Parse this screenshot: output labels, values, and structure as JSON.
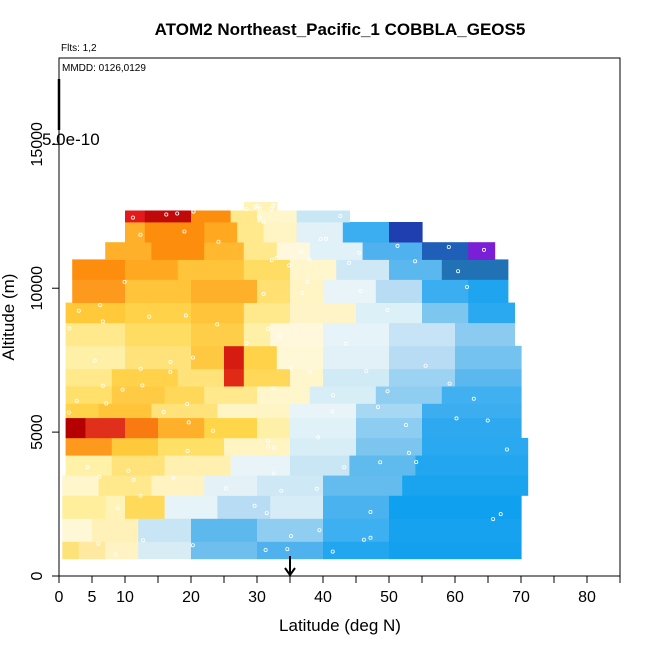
{
  "chart_data": {
    "type": "heatmap",
    "title": "ATOM2 Northeast_Pacific_1 COBBLA_GEOS5",
    "flights_label": "Flts: 1,2",
    "dates_label": "MMDD: 0126,0129",
    "scale_label": "5.0e-10",
    "xlabel": "Latitude (deg N)",
    "ylabel": "Altitude (m)",
    "xlim": [
      0,
      85
    ],
    "ylim": [
      0,
      18000
    ],
    "x_ticks": [
      0,
      5,
      10,
      20,
      30,
      40,
      50,
      60,
      70,
      80
    ],
    "x_tick_labels": [
      "0",
      "5",
      "10",
      "20",
      "30",
      "40",
      "50",
      "60",
      "70",
      "80"
    ],
    "y_ticks": [
      0,
      5000,
      10000,
      15000
    ],
    "y_tick_labels": [
      "0",
      "5000",
      "10000",
      "15000"
    ],
    "marker_latitude": 35,
    "colors": {
      "dark_red": "#b40000",
      "red": "#e31a1c",
      "orange": "#fd8d0c",
      "yellow": "#ffd92f",
      "pale_yellow": "#ffffbf",
      "pale_blue": "#e0f3f8",
      "light_blue": "#9ecae1",
      "sky_blue": "#1fa4ef",
      "blue": "#2171b5",
      "dark_blue": "#08088f",
      "purple": "#7a1fd6"
    },
    "rows": [
      {
        "y0": 600,
        "y1": 1200,
        "lat_start": 0.5,
        "lat_end": 70,
        "cells": [
          [
            0.5,
            3,
            "#fde27a"
          ],
          [
            3,
            7,
            "#ffe9a0"
          ],
          [
            7,
            12,
            "#fff3c4"
          ],
          [
            12,
            20,
            "#d8ecf6"
          ],
          [
            20,
            30,
            "#6fbfee"
          ],
          [
            30,
            40,
            "#4fb2ee"
          ],
          [
            40,
            50,
            "#22a6f0"
          ],
          [
            50,
            70,
            "#12a0ef"
          ]
        ]
      },
      {
        "y0": 1200,
        "y1": 2000,
        "lat_start": 0.5,
        "lat_end": 70,
        "cells": [
          [
            0.5,
            5,
            "#fff8d6"
          ],
          [
            5,
            12,
            "#fff1b8"
          ],
          [
            12,
            20,
            "#c7e5f5"
          ],
          [
            20,
            30,
            "#5db8ee"
          ],
          [
            30,
            40,
            "#8fcdf1"
          ],
          [
            40,
            50,
            "#3cb0f0"
          ],
          [
            50,
            70,
            "#16a2ef"
          ]
        ]
      },
      {
        "y0": 2000,
        "y1": 2800,
        "lat_start": 0.5,
        "lat_end": 70,
        "cells": [
          [
            0.5,
            7,
            "#ffef9c"
          ],
          [
            7,
            10,
            "#fff3b8"
          ],
          [
            10,
            16,
            "#ffd95a"
          ],
          [
            16,
            24,
            "#e6f3f8"
          ],
          [
            24,
            32,
            "#b8dcf3"
          ],
          [
            32,
            40,
            "#d6ecf6"
          ],
          [
            40,
            50,
            "#4ab3ef"
          ],
          [
            50,
            70,
            "#0fa0ef"
          ]
        ]
      },
      {
        "y0": 2800,
        "y1": 3500,
        "lat_start": 0.5,
        "lat_end": 71,
        "cells": [
          [
            0.5,
            6,
            "#fff6cc"
          ],
          [
            6,
            14,
            "#ffe98c"
          ],
          [
            14,
            22,
            "#fff3c2"
          ],
          [
            22,
            30,
            "#e4f2f8"
          ],
          [
            30,
            40,
            "#cfe8f6"
          ],
          [
            40,
            52,
            "#64bcee"
          ],
          [
            52,
            71,
            "#1aa3ef"
          ]
        ]
      },
      {
        "y0": 3500,
        "y1": 4200,
        "lat_start": 1,
        "lat_end": 71,
        "cells": [
          [
            1,
            8,
            "#fff1a8"
          ],
          [
            8,
            16,
            "#ffe27a"
          ],
          [
            16,
            26,
            "#fff0b0"
          ],
          [
            26,
            35,
            "#e8f4f7"
          ],
          [
            35,
            44,
            "#c9e6f5"
          ],
          [
            44,
            54,
            "#5fbaee"
          ],
          [
            54,
            71,
            "#22a6f0"
          ]
        ]
      },
      {
        "y0": 4200,
        "y1": 4800,
        "lat_start": 1,
        "lat_end": 71,
        "cells": [
          [
            1,
            8,
            "#fd9a1e"
          ],
          [
            8,
            15,
            "#ffc93c"
          ],
          [
            15,
            25,
            "#ffe066"
          ],
          [
            25,
            35,
            "#fff4c2"
          ],
          [
            35,
            45,
            "#d8eef7"
          ],
          [
            45,
            55,
            "#7cc5ef"
          ],
          [
            55,
            71,
            "#2aa9f0"
          ]
        ]
      },
      {
        "y0": 4800,
        "y1": 5500,
        "lat_start": 1,
        "lat_end": 70,
        "cells": [
          [
            1,
            4,
            "#b40000"
          ],
          [
            4,
            10,
            "#e0301c"
          ],
          [
            10,
            15,
            "#f87a10"
          ],
          [
            15,
            22,
            "#ffb02a"
          ],
          [
            22,
            30,
            "#ffd64a"
          ],
          [
            30,
            35,
            "#fff0a8"
          ],
          [
            35,
            45,
            "#e0f1f8"
          ],
          [
            45,
            55,
            "#8dcdf1"
          ],
          [
            55,
            70,
            "#2ea9f0"
          ]
        ]
      },
      {
        "y0": 5500,
        "y1": 6000,
        "lat_start": 1,
        "lat_end": 70,
        "cells": [
          [
            1,
            6,
            "#ffd24a"
          ],
          [
            6,
            14,
            "#ffc43a"
          ],
          [
            14,
            24,
            "#ffe27a"
          ],
          [
            24,
            35,
            "#fff4c4"
          ],
          [
            35,
            45,
            "#e8f4f8"
          ],
          [
            45,
            55,
            "#a6d7f3"
          ],
          [
            55,
            70,
            "#3caef0"
          ]
        ]
      },
      {
        "y0": 6000,
        "y1": 6600,
        "lat_start": 1,
        "lat_end": 70,
        "cells": [
          [
            1,
            8,
            "#ffe06a"
          ],
          [
            8,
            16,
            "#ffca44"
          ],
          [
            16,
            22,
            "#ffd85a"
          ],
          [
            22,
            30,
            "#ffe98c"
          ],
          [
            30,
            38,
            "#fff6cc"
          ],
          [
            38,
            48,
            "#d8eef7"
          ],
          [
            48,
            58,
            "#8fcdf1"
          ],
          [
            58,
            70,
            "#41b0f0"
          ]
        ]
      },
      {
        "y0": 6600,
        "y1": 7200,
        "lat_start": 1,
        "lat_end": 70,
        "cells": [
          [
            1,
            8,
            "#ffe98a"
          ],
          [
            8,
            18,
            "#ffd24a"
          ],
          [
            18,
            25,
            "#ffe27a"
          ],
          [
            25,
            28,
            "#e02a16"
          ],
          [
            28,
            35,
            "#ffd85a"
          ],
          [
            35,
            40,
            "#fff6cc"
          ],
          [
            40,
            50,
            "#d0eaf6"
          ],
          [
            50,
            60,
            "#9dd3f2"
          ],
          [
            60,
            70,
            "#5ab8ef"
          ]
        ]
      },
      {
        "y0": 7200,
        "y1": 8000,
        "lat_start": 1,
        "lat_end": 70,
        "cells": [
          [
            1,
            10,
            "#fff0a8"
          ],
          [
            10,
            20,
            "#ffe27a"
          ],
          [
            20,
            25,
            "#ffc840"
          ],
          [
            25,
            28,
            "#d61c12"
          ],
          [
            28,
            33,
            "#ffd24a"
          ],
          [
            33,
            40,
            "#fff8d6"
          ],
          [
            40,
            50,
            "#e2f1f8"
          ],
          [
            50,
            60,
            "#b8dcf3"
          ],
          [
            60,
            70,
            "#74c2ef"
          ]
        ]
      },
      {
        "y0": 8000,
        "y1": 8800,
        "lat_start": 1,
        "lat_end": 69,
        "cells": [
          [
            1,
            10,
            "#ffe98c"
          ],
          [
            10,
            20,
            "#ffdc62"
          ],
          [
            20,
            28,
            "#ffce48"
          ],
          [
            28,
            32,
            "#fff0a8"
          ],
          [
            32,
            40,
            "#fff8dc"
          ],
          [
            40,
            50,
            "#e6f3f8"
          ],
          [
            50,
            60,
            "#c6e4f5"
          ],
          [
            60,
            69,
            "#8ccbf1"
          ]
        ]
      },
      {
        "y0": 8800,
        "y1": 9500,
        "lat_start": 1,
        "lat_end": 69,
        "cells": [
          [
            1,
            10,
            "#ffc93a"
          ],
          [
            10,
            20,
            "#ffd24a"
          ],
          [
            20,
            28,
            "#ffc43a"
          ],
          [
            28,
            35,
            "#ffe98c"
          ],
          [
            35,
            45,
            "#fff4c8"
          ],
          [
            45,
            55,
            "#dcf0f7"
          ],
          [
            55,
            62,
            "#7cc6f0"
          ],
          [
            62,
            69,
            "#2aa9f0"
          ]
        ]
      },
      {
        "y0": 9500,
        "y1": 10300,
        "lat_start": 2,
        "lat_end": 68,
        "cells": [
          [
            2,
            10,
            "#fd9a1e"
          ],
          [
            10,
            20,
            "#ffc43a"
          ],
          [
            20,
            30,
            "#ffb02a"
          ],
          [
            30,
            35,
            "#ffe070"
          ],
          [
            35,
            40,
            "#fff4c4"
          ],
          [
            40,
            48,
            "#e8f4f8"
          ],
          [
            48,
            55,
            "#b8dcf3"
          ],
          [
            55,
            62,
            "#3aaef0"
          ],
          [
            62,
            68,
            "#1fa4ef"
          ]
        ]
      },
      {
        "y0": 10300,
        "y1": 11000,
        "lat_start": 2,
        "lat_end": 68,
        "cells": [
          [
            2,
            10,
            "#fd8d0c"
          ],
          [
            10,
            18,
            "#ffa820"
          ],
          [
            18,
            28,
            "#ffc43a"
          ],
          [
            28,
            35,
            "#ffdc62"
          ],
          [
            35,
            42,
            "#fff6cc"
          ],
          [
            42,
            50,
            "#cfe8f6"
          ],
          [
            50,
            58,
            "#5ab8ef"
          ],
          [
            58,
            68,
            "#2171b5"
          ]
        ]
      },
      {
        "y0": 11000,
        "y1": 11600,
        "lat_start": 7,
        "lat_end": 66,
        "cells": [
          [
            7,
            14,
            "#ffb02a"
          ],
          [
            14,
            22,
            "#fd8d0c"
          ],
          [
            22,
            28,
            "#ffb830"
          ],
          [
            28,
            33,
            "#ffe98c"
          ],
          [
            33,
            38,
            "#fff8dc"
          ],
          [
            38,
            46,
            "#e0f1f8"
          ],
          [
            46,
            55,
            "#4fb2ef"
          ],
          [
            55,
            62,
            "#1f5fb8"
          ],
          [
            62,
            66,
            "#7a1fd6"
          ]
        ]
      },
      {
        "y0": 11600,
        "y1": 12300,
        "lat_start": 10,
        "lat_end": 55,
        "cells": [
          [
            10,
            13,
            "#ffb02a"
          ],
          [
            13,
            22,
            "#fd8d0c"
          ],
          [
            22,
            27,
            "#ffa820"
          ],
          [
            27,
            31,
            "#ffe98c"
          ],
          [
            31,
            36,
            "#fff4c4"
          ],
          [
            36,
            43,
            "#e2f1f8"
          ],
          [
            43,
            50,
            "#3aaef0"
          ],
          [
            50,
            55,
            "#1f3fb0"
          ]
        ]
      },
      {
        "y0": 12300,
        "y1": 12700,
        "lat_start": 10,
        "lat_end": 44,
        "cells": [
          [
            10,
            13,
            "#e31a1c"
          ],
          [
            13,
            20,
            "#c00a0a"
          ],
          [
            20,
            26,
            "#fd8d0c"
          ],
          [
            26,
            30,
            "#ffe98c"
          ],
          [
            30,
            36,
            "#fff6cc"
          ],
          [
            36,
            44,
            "#c9e6f5"
          ]
        ]
      },
      {
        "y0": 12700,
        "y1": 13000,
        "lat_start": 28,
        "lat_end": 33,
        "cells": [
          [
            28,
            33,
            "#fff3b8"
          ]
        ]
      }
    ]
  }
}
